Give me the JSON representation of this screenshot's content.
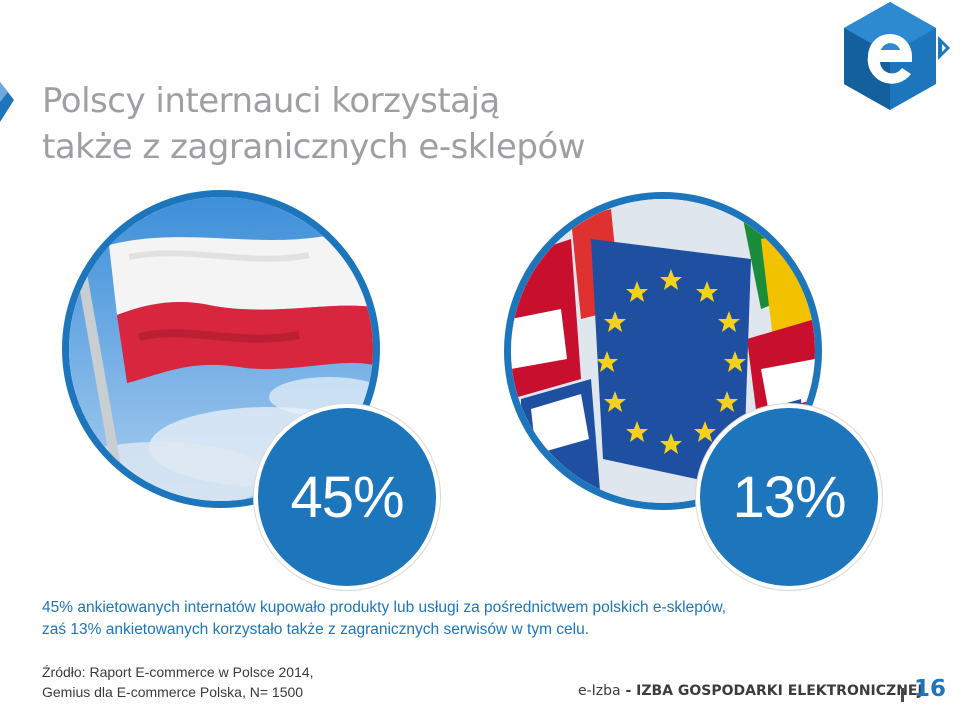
{
  "title": {
    "line1": "Polscy internauci korzystają",
    "line2": "także z zagranicznych e-sklepów"
  },
  "stats": [
    {
      "value": "45%",
      "image": "polish-flag"
    },
    {
      "value": "13%",
      "image": "eu-flags"
    }
  ],
  "description": {
    "line1": "45% ankietowanych internatów kupowało produkty lub usługi za pośrednictwem polskich e-sklepów,",
    "line2": "zaś 13% ankietowanych korzystało także z zagranicznych serwisów w tym celu."
  },
  "source": {
    "line1": "Źródło: Raport E-commerce w Polsce 2014,",
    "line2": "Gemius dla E-commerce Polska, N= 1500"
  },
  "footer": {
    "brand_light": "e-Izba",
    "brand_bold": " - IZBA GOSPODARKI ELEKTRONICZNEJ",
    "page_number": "16"
  },
  "colors": {
    "accent": "#1d75bb",
    "title_gray": "#9e9fa2",
    "flag_red": "#d7263d",
    "eu_blue": "#1f4fa0",
    "eu_star": "#f4d21c"
  },
  "icons": [
    "title-marker-icon",
    "e-izba-logo-icon"
  ]
}
